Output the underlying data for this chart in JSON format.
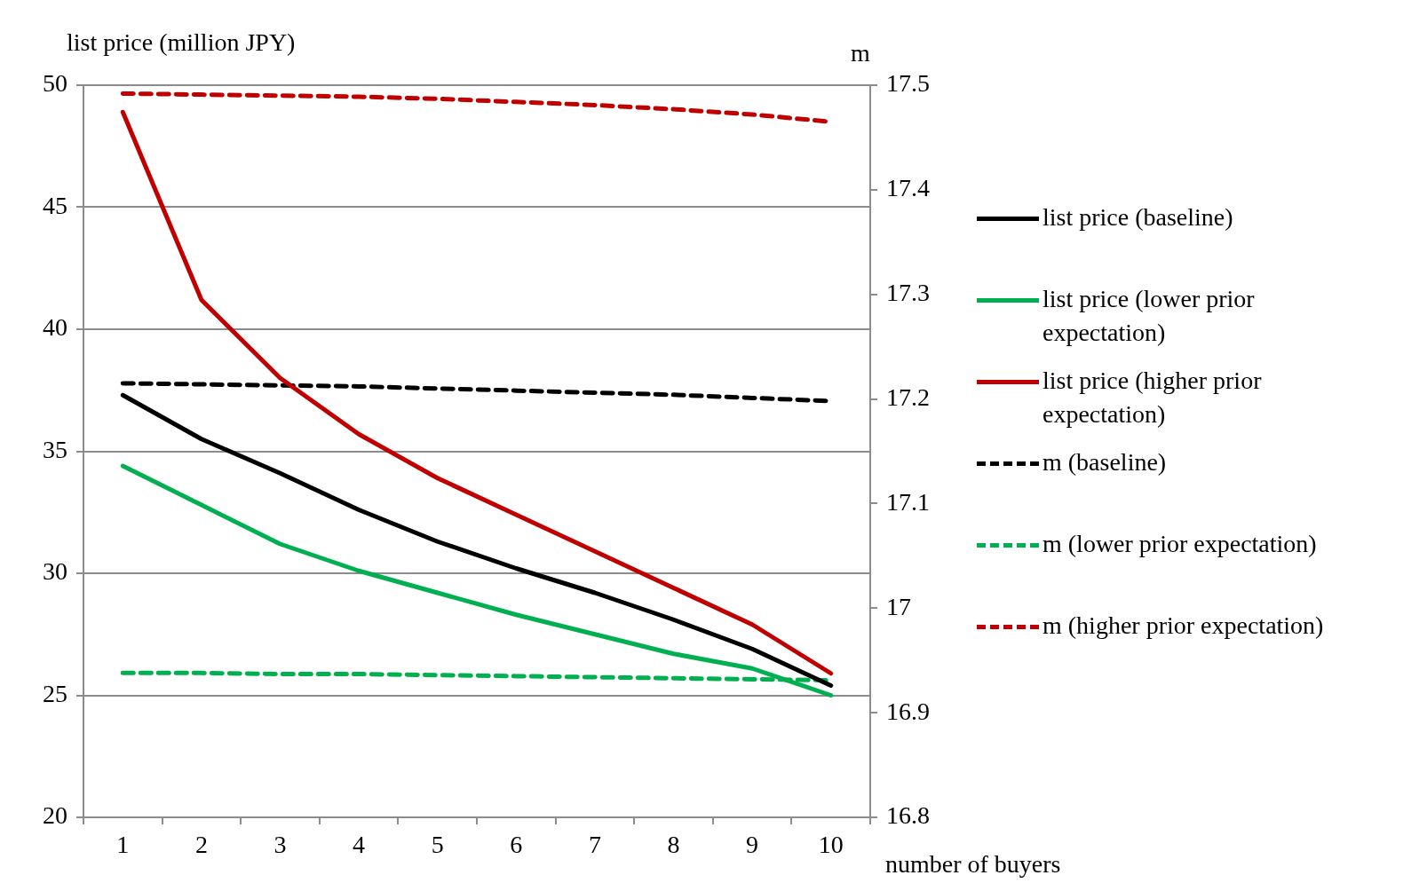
{
  "chart_data": {
    "type": "line",
    "xlabel": "number of buyers",
    "ylabel": "list price (million JPY)",
    "y2label": "m",
    "categories": [
      "1",
      "2",
      "3",
      "4",
      "5",
      "6",
      "7",
      "8",
      "9",
      "10"
    ],
    "ylim": [
      20,
      50
    ],
    "yticks": [
      20,
      25,
      30,
      35,
      40,
      45,
      50
    ],
    "y2lim": [
      16.8,
      17.5
    ],
    "y2ticks": [
      16.8,
      16.9,
      {
        "value": 17,
        "label": "17"
      },
      17.1,
      17.2,
      17.3,
      17.4,
      17.5
    ],
    "grid": "y",
    "legend": "right",
    "marker": "none",
    "series": [
      {
        "name": "list price (baseline)",
        "color": "#000000",
        "line_style": "solid",
        "values": [
          37.3,
          35.5,
          34.1,
          32.6,
          31.3,
          30.2,
          29.2,
          28.1,
          26.9,
          25.4
        ]
      },
      {
        "name": "list price (lower prior expectation)",
        "color": "#00b050",
        "line_style": "solid",
        "values": [
          34.4,
          32.8,
          31.2,
          30.1,
          29.2,
          28.3,
          27.5,
          26.7,
          26.1,
          25.0
        ]
      },
      {
        "name": "list price (higher prior expectation)",
        "color": "#c00000",
        "line_style": "solid",
        "values": [
          48.9,
          41.2,
          38.0,
          35.7,
          33.9,
          32.4,
          30.9,
          29.4,
          27.9,
          25.9
        ]
      },
      {
        "name": "m (baseline)",
        "color": "#000000",
        "line_style": "dashed",
        "axis": "y2",
        "values": [
          17.215,
          17.214,
          17.213,
          17.212,
          17.21,
          17.208,
          17.206,
          17.204,
          17.201,
          17.198
        ]
      },
      {
        "name": "m (lower prior expectation)",
        "color": "#00b050",
        "line_style": "dashed",
        "axis": "y2",
        "values": [
          16.938,
          16.938,
          16.937,
          16.937,
          16.936,
          16.935,
          16.934,
          16.933,
          16.932,
          16.931
        ]
      },
      {
        "name": "m (higher prior expectation)",
        "color": "#c00000",
        "line_style": "dashed",
        "axis": "y2",
        "values": [
          17.492,
          17.491,
          17.49,
          17.489,
          17.487,
          17.484,
          17.481,
          17.477,
          17.472,
          17.465
        ]
      }
    ]
  }
}
